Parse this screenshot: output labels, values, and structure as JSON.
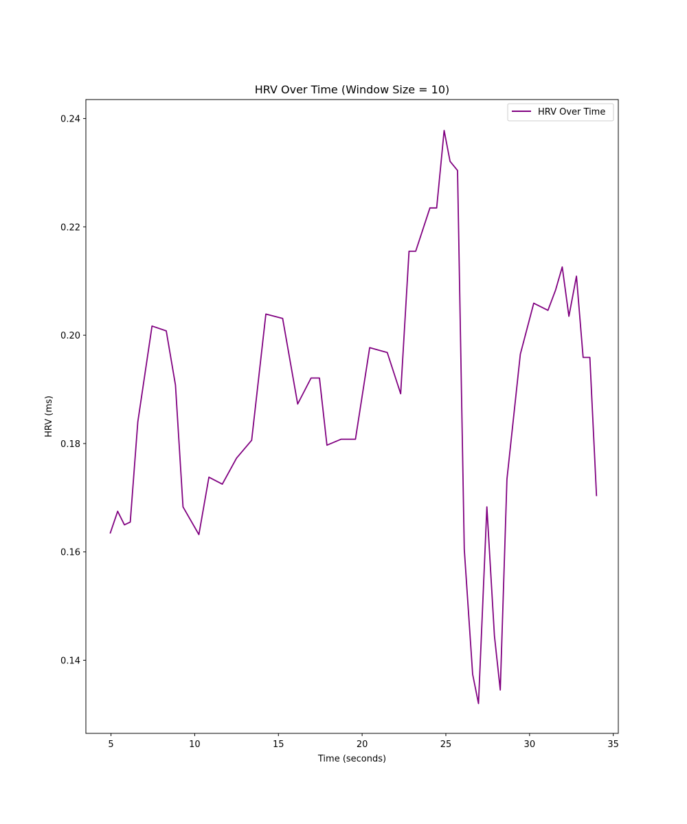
{
  "chart_data": {
    "type": "line",
    "title": "HRV Over Time (Window Size = 10)",
    "xlabel": "Time (seconds)",
    "ylabel": "HRV (ms)",
    "xlim": [
      3.5,
      35.3
    ],
    "ylim": [
      0.1265,
      0.2435
    ],
    "xticks": [
      5,
      10,
      15,
      20,
      25,
      30,
      35
    ],
    "yticks": [
      0.14,
      0.16,
      0.18,
      0.2,
      0.22,
      0.24
    ],
    "ytick_labels": [
      "0.14",
      "0.16",
      "0.18",
      "0.20",
      "0.22",
      "0.24"
    ],
    "grid": false,
    "legend": "top-right",
    "series": [
      {
        "name": "HRV Over Time",
        "color": "#800080",
        "x": [
          4.95,
          5.4,
          5.8,
          6.15,
          6.6,
          7.45,
          8.3,
          8.85,
          9.3,
          10.25,
          10.85,
          11.65,
          12.5,
          13.4,
          14.25,
          15.25,
          16.15,
          16.95,
          17.45,
          17.9,
          18.75,
          19.6,
          20.45,
          21.5,
          22.3,
          22.8,
          23.2,
          24.05,
          24.45,
          24.9,
          25.25,
          25.7,
          26.1,
          26.6,
          26.95,
          27.45,
          27.9,
          28.25,
          28.65,
          29.45,
          30.25,
          31.1,
          31.55,
          31.95,
          32.35,
          32.8,
          33.2,
          33.6,
          34.0
        ],
        "y": [
          0.1634,
          0.1675,
          0.165,
          0.1655,
          0.184,
          0.2017,
          0.2008,
          0.1908,
          0.1683,
          0.1632,
          0.1738,
          0.1725,
          0.1773,
          0.1806,
          0.2039,
          0.2031,
          0.1873,
          0.1921,
          0.1921,
          0.1797,
          0.1808,
          0.1808,
          0.1977,
          0.1968,
          0.1892,
          0.2155,
          0.2155,
          0.2235,
          0.2235,
          0.2378,
          0.2321,
          0.2304,
          0.1605,
          0.1374,
          0.132,
          0.1683,
          0.1445,
          0.1345,
          0.1734,
          0.1965,
          0.2059,
          0.2046,
          0.2083,
          0.2126,
          0.2035,
          0.2109,
          0.1959,
          0.1959,
          0.1703
        ]
      }
    ]
  }
}
